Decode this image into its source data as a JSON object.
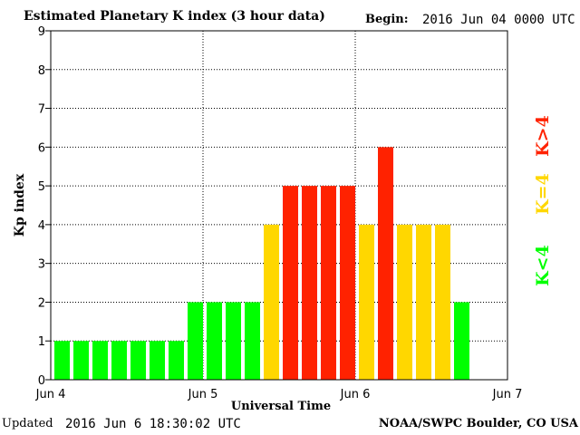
{
  "header": {
    "title": "Estimated Planetary K index (3 hour data)",
    "begin_label": "Begin:",
    "begin_value": "2016 Jun 04 0000 UTC"
  },
  "footer": {
    "updated_label": "Updated",
    "updated_value": "2016 Jun  6 18:30:02 UTC",
    "source": "NOAA/SWPC Boulder, CO USA"
  },
  "legend": {
    "high": "K>4",
    "equal": "K=4",
    "low": "K<4"
  },
  "colors": {
    "low": "#00ff00",
    "equal": "#ffd700",
    "high": "#ff2200",
    "grid": "#000000"
  },
  "chart_data": {
    "type": "bar",
    "title": "Estimated Planetary K index (3 hour data)",
    "xlabel": "Universal Time",
    "ylabel": "Kp index",
    "ylim": [
      0,
      9
    ],
    "yticks": [
      "0",
      "1",
      "2",
      "3",
      "4",
      "5",
      "6",
      "7",
      "8",
      "9"
    ],
    "x_ticks": [
      "Jun 4",
      "Jun 5",
      "Jun 6",
      "Jun 7"
    ],
    "bar_interval_hours": 3,
    "categories": [
      "2016-06-04 00:00",
      "2016-06-04 03:00",
      "2016-06-04 06:00",
      "2016-06-04 09:00",
      "2016-06-04 12:00",
      "2016-06-04 15:00",
      "2016-06-04 18:00",
      "2016-06-04 21:00",
      "2016-06-05 00:00",
      "2016-06-05 03:00",
      "2016-06-05 06:00",
      "2016-06-05 09:00",
      "2016-06-05 12:00",
      "2016-06-05 15:00",
      "2016-06-05 18:00",
      "2016-06-05 21:00",
      "2016-06-06 00:00",
      "2016-06-06 03:00",
      "2016-06-06 06:00",
      "2016-06-06 09:00",
      "2016-06-06 12:00",
      "2016-06-06 15:00"
    ],
    "values": [
      1,
      1,
      1,
      1,
      1,
      1,
      1,
      2,
      2,
      2,
      2,
      4,
      5,
      5,
      5,
      5,
      4,
      6,
      4,
      4,
      4,
      2
    ],
    "color_rule": {
      "low": "K<4",
      "equal": "K=4",
      "high": "K>4"
    },
    "grid": true,
    "legend_position": "right"
  }
}
